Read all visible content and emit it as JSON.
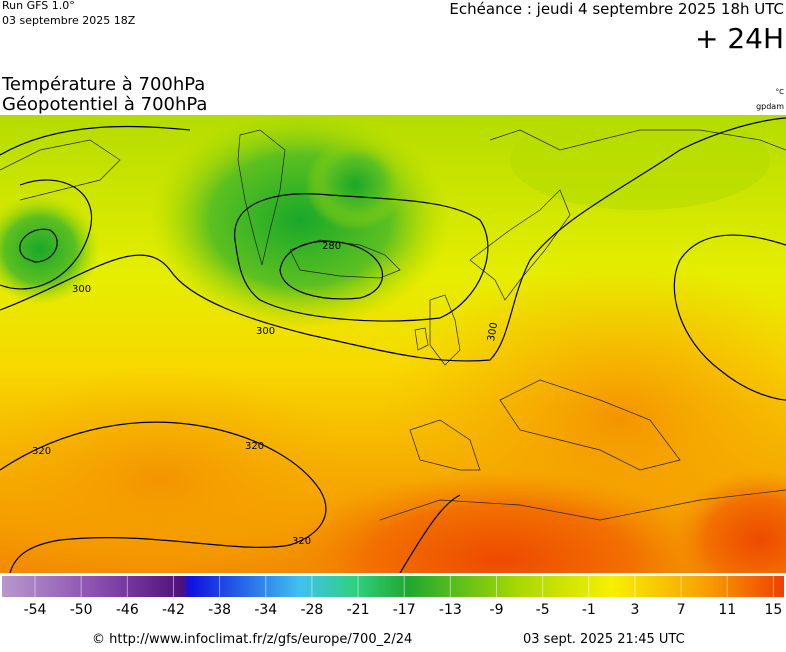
{
  "header": {
    "run": "Run GFS 1.0°",
    "run_date": "03 septembre 2025 18Z",
    "valid": "Echéance : jeudi 4 septembre 2025 18h UTC",
    "lead": "+ 24H"
  },
  "titles": {
    "line1": "Température à 700hPa",
    "line2": "Géopotentiel à 700hPa",
    "unit_temp": "°C",
    "unit_geo": "gpdam"
  },
  "map": {
    "contour_labels": [
      300,
      280,
      300,
      300,
      320,
      320,
      320
    ]
  },
  "colorbar": {
    "ticks": [
      -54,
      -50,
      -46,
      -42,
      -38,
      -34,
      -28,
      -21,
      -17,
      -13,
      -9,
      -5,
      -1,
      3,
      7,
      11,
      15
    ]
  },
  "footer": {
    "source": "© http://www.infoclimat.fr/z/gfs/europe/700_2/24",
    "generated": "03 sept. 2025 21:45 UTC"
  }
}
